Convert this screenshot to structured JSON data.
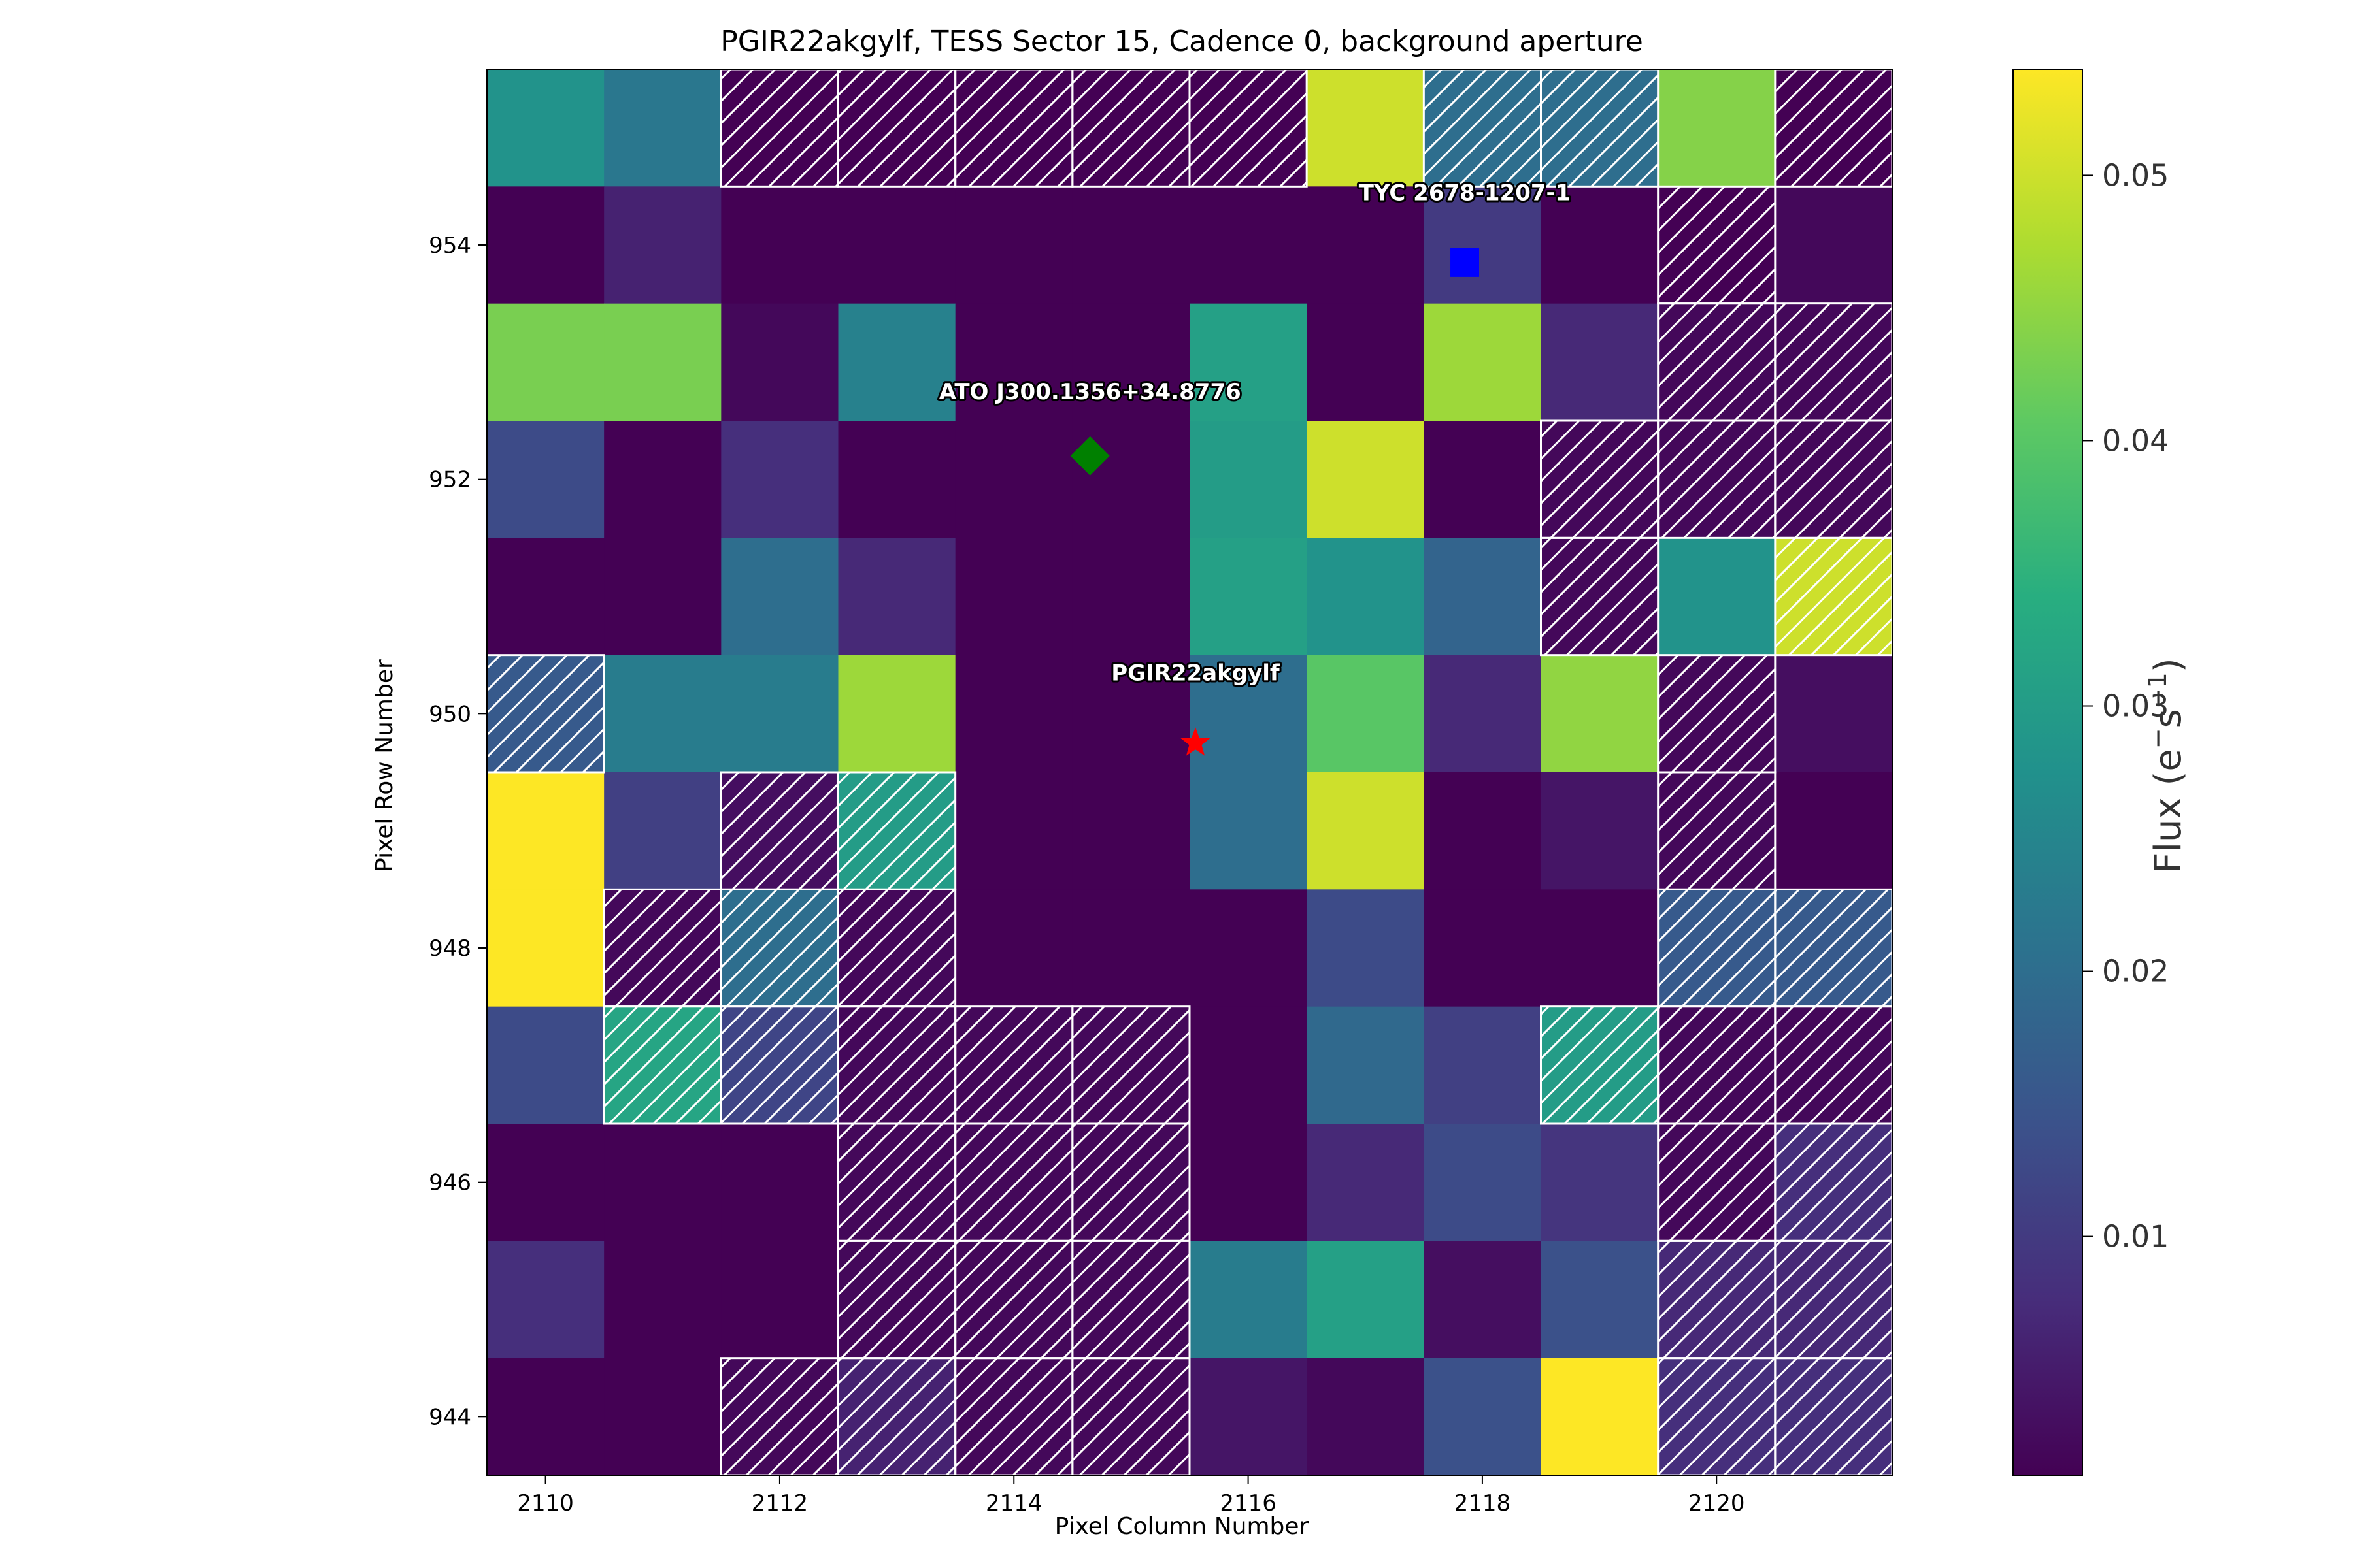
{
  "chart_data": {
    "type": "heatmap",
    "title": "PGIR22akgylf, TESS Sector 15, Cadence 0, background aperture",
    "xlabel": "Pixel Column Number",
    "ylabel": "Pixel Row Number",
    "colorbar_label_main": "Flux (e",
    "colorbar_label_sup1": "−",
    "colorbar_label_mid": "s",
    "colorbar_label_sup2": "−1",
    "colorbar_label_end": ")",
    "colormap": "viridis",
    "vmin": 0.001,
    "vmax": 0.054,
    "x_start": 2110,
    "y_start": 944,
    "xlim": [
      2109.5,
      2121.5
    ],
    "ylim": [
      943.5,
      955.5
    ],
    "x_ticks": [
      2110,
      2112,
      2114,
      2116,
      2118,
      2120
    ],
    "x_tick_labels": [
      "2110",
      "2112",
      "2114",
      "2116",
      "2118",
      "2120"
    ],
    "y_ticks": [
      944,
      946,
      948,
      950,
      952,
      954
    ],
    "y_tick_labels": [
      "944",
      "946",
      "948",
      "950",
      "952",
      "954"
    ],
    "colorbar_ticks": [
      0.01,
      0.02,
      0.03,
      0.04,
      0.05
    ],
    "colorbar_tick_labels": [
      "0.01",
      "0.02",
      "0.03",
      "0.04",
      "0.05"
    ],
    "flux_rows_top_to_bottom": [
      [
        0.028,
        0.022,
        0.001,
        0.001,
        0.001,
        0.001,
        0.001,
        0.05,
        0.02,
        0.02,
        0.044,
        0.001
      ],
      [
        0.001,
        0.006,
        0.001,
        0.001,
        0.001,
        0.001,
        0.001,
        0.001,
        0.01,
        0.001,
        0.001,
        0.002
      ],
      [
        0.043,
        0.043,
        0.002,
        0.024,
        0.001,
        0.001,
        0.031,
        0.001,
        0.046,
        0.007,
        0.002,
        0.002
      ],
      [
        0.013,
        0.001,
        0.008,
        0.001,
        0.001,
        0.001,
        0.03,
        0.05,
        0.001,
        0.002,
        0.002,
        0.002
      ],
      [
        0.001,
        0.001,
        0.02,
        0.007,
        0.001,
        0.001,
        0.031,
        0.028,
        0.018,
        0.002,
        0.028,
        0.05
      ],
      [
        0.016,
        0.023,
        0.023,
        0.046,
        0.001,
        0.001,
        0.02,
        0.04,
        0.007,
        0.045,
        0.002,
        0.003
      ],
      [
        0.054,
        0.011,
        0.003,
        0.03,
        0.001,
        0.001,
        0.02,
        0.05,
        0.001,
        0.004,
        0.002,
        0.001
      ],
      [
        0.054,
        0.002,
        0.02,
        0.002,
        0.001,
        0.001,
        0.001,
        0.013,
        0.001,
        0.001,
        0.016,
        0.016
      ],
      [
        0.013,
        0.032,
        0.012,
        0.002,
        0.002,
        0.002,
        0.001,
        0.019,
        0.011,
        0.03,
        0.002,
        0.002
      ],
      [
        0.001,
        0.001,
        0.001,
        0.002,
        0.002,
        0.002,
        0.001,
        0.007,
        0.013,
        0.009,
        0.002,
        0.008
      ],
      [
        0.008,
        0.001,
        0.001,
        0.002,
        0.002,
        0.002,
        0.023,
        0.031,
        0.003,
        0.014,
        0.007,
        0.007
      ],
      [
        0.001,
        0.001,
        0.002,
        0.006,
        0.002,
        0.002,
        0.004,
        0.002,
        0.014,
        0.054,
        0.008,
        0.008
      ]
    ],
    "aperture_rows_top_to_bottom": [
      [
        0,
        0,
        1,
        1,
        1,
        1,
        1,
        0,
        1,
        1,
        0,
        1
      ],
      [
        0,
        0,
        0,
        0,
        0,
        0,
        0,
        0,
        0,
        0,
        1,
        0
      ],
      [
        0,
        0,
        0,
        0,
        0,
        0,
        0,
        0,
        0,
        0,
        1,
        1
      ],
      [
        0,
        0,
        0,
        0,
        0,
        0,
        0,
        0,
        0,
        1,
        1,
        1
      ],
      [
        0,
        0,
        0,
        0,
        0,
        0,
        0,
        0,
        0,
        1,
        0,
        1
      ],
      [
        1,
        0,
        0,
        0,
        0,
        0,
        0,
        0,
        0,
        0,
        1,
        0
      ],
      [
        0,
        0,
        1,
        1,
        0,
        0,
        0,
        0,
        0,
        0,
        1,
        0
      ],
      [
        0,
        1,
        1,
        1,
        0,
        0,
        0,
        0,
        0,
        0,
        1,
        1
      ],
      [
        0,
        1,
        1,
        1,
        1,
        1,
        0,
        0,
        0,
        1,
        1,
        1
      ],
      [
        0,
        0,
        0,
        1,
        1,
        1,
        0,
        0,
        0,
        0,
        1,
        1
      ],
      [
        0,
        0,
        0,
        1,
        1,
        1,
        0,
        0,
        0,
        0,
        1,
        1
      ],
      [
        0,
        0,
        1,
        1,
        1,
        1,
        0,
        0,
        0,
        0,
        1,
        1
      ]
    ],
    "sources": [
      {
        "label": "TYC 2678-1207-1",
        "marker": "square",
        "color": "#0000ff",
        "x": 2117.85,
        "y": 953.85,
        "label_x": 2117.85,
        "label_y": 954.45
      },
      {
        "label": "ATO J300.1356+34.8776",
        "marker": "diamond",
        "color": "#008000",
        "x": 2114.65,
        "y": 952.2,
        "label_x": 2114.65,
        "label_y": 952.75
      },
      {
        "label": "PGIR22akgylf",
        "marker": "star",
        "color": "#ff0000",
        "x": 2115.55,
        "y": 949.75,
        "label_x": 2115.55,
        "label_y": 950.35
      }
    ]
  }
}
